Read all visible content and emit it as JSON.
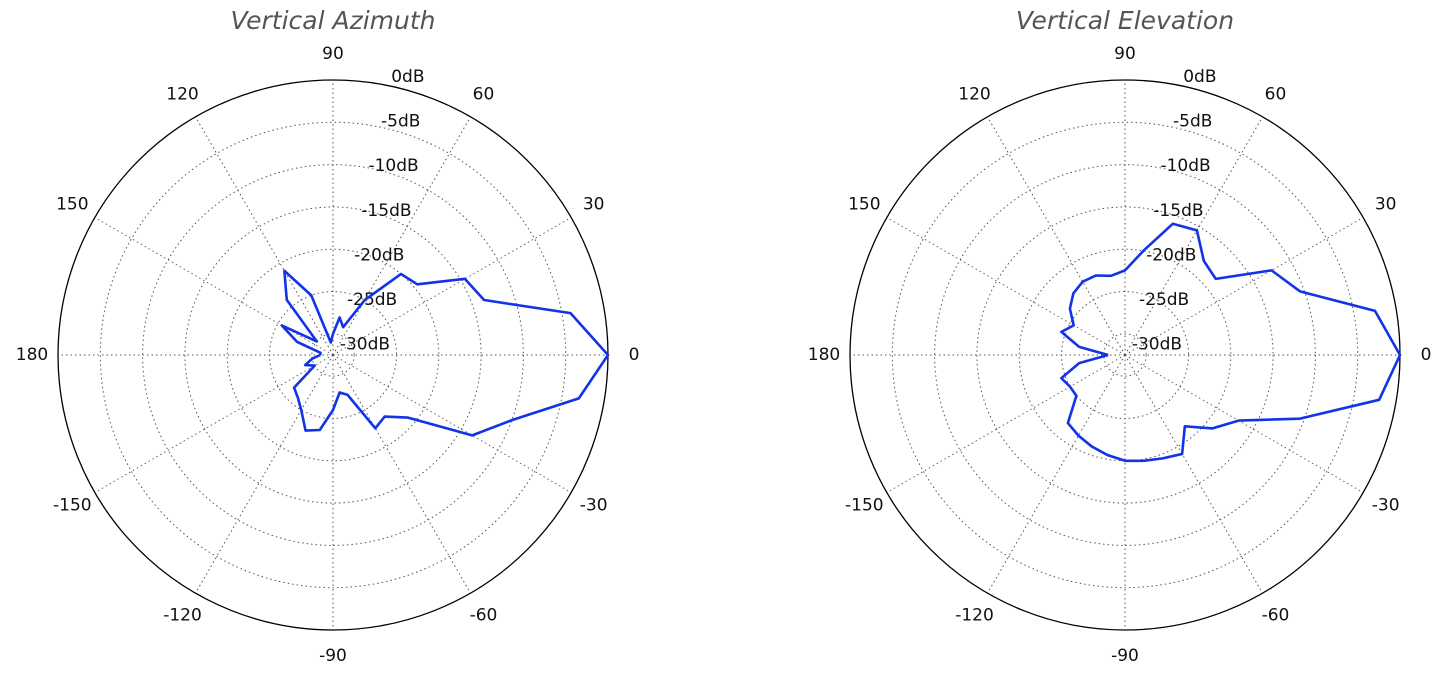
{
  "chart_data": [
    {
      "type": "polar",
      "title": "Vertical Azimuth",
      "color": "#1233e6",
      "grid": true,
      "x": [
        -180,
        -170,
        -160,
        -150,
        -140,
        -130,
        -120,
        -110,
        -100,
        -90,
        -80,
        -70,
        -60,
        -50,
        -40,
        -30,
        -20,
        -10,
        0,
        10,
        20,
        30,
        40,
        50,
        60,
        70,
        80,
        90,
        100,
        110,
        120,
        130,
        140,
        150,
        160,
        170,
        180
      ],
      "values": [
        -31,
        -30,
        -29,
        -30,
        -26.5,
        -26,
        -25,
        -23,
        -23.5,
        -26,
        -28,
        -27.5,
        -22.5,
        -23,
        -21,
        -13.5,
        -10,
        -3,
        0,
        -4,
        -13.5,
        -14.5,
        -19.5,
        -20,
        -25,
        -29,
        -28,
        -30,
        -31,
        -25,
        -21,
        -24,
        -30,
        -25.5,
        -28,
        -31,
        -31
      ],
      "xlim": [
        -180,
        180
      ],
      "xticks": [
        0,
        30,
        60,
        90,
        120,
        150,
        180,
        -150,
        -120,
        -90,
        -60,
        -30
      ],
      "ylim": [
        -32.5,
        0
      ],
      "yticks": [
        {
          "value": 0,
          "label": "0dB"
        },
        {
          "value": -5,
          "label": "-5dB"
        },
        {
          "value": -10,
          "label": "-10dB"
        },
        {
          "value": -15,
          "label": "-15dB"
        },
        {
          "value": -20,
          "label": "-20dB"
        },
        {
          "value": -25,
          "label": "-25dB"
        },
        {
          "value": -30,
          "label": "-30dB"
        }
      ]
    },
    {
      "type": "polar",
      "title": "Vertical Elevation",
      "color": "#1233e6",
      "grid": true,
      "x": [
        -180,
        -170,
        -160,
        -150,
        -140,
        -130,
        -120,
        -110,
        -100,
        -90,
        -80,
        -70,
        -60,
        -50,
        -40,
        -30,
        -20,
        -10,
        0,
        10,
        20,
        30,
        40,
        50,
        60,
        70,
        80,
        90,
        100,
        110,
        120,
        130,
        140,
        150,
        160,
        170,
        180
      ],
      "values": [
        -30.5,
        -27,
        -24.5,
        -25,
        -25,
        -22,
        -21.5,
        -21,
        -20.5,
        -20,
        -19.8,
        -19.5,
        -19,
        -21.5,
        -19,
        -17,
        -10.5,
        -2,
        0,
        -2.5,
        -10.5,
        -12.5,
        -18.5,
        -18,
        -15.5,
        -16,
        -20,
        -22.5,
        -23,
        -22.5,
        -22.5,
        -23,
        -24,
        -25.5,
        -24.5,
        -27,
        -30.5
      ],
      "xlim": [
        -180,
        180
      ],
      "xticks": [
        0,
        30,
        60,
        90,
        120,
        150,
        180,
        -150,
        -120,
        -90,
        -60,
        -30
      ],
      "ylim": [
        -32.5,
        0
      ],
      "yticks": [
        {
          "value": 0,
          "label": "0dB"
        },
        {
          "value": -5,
          "label": "-5dB"
        },
        {
          "value": -10,
          "label": "-10dB"
        },
        {
          "value": -15,
          "label": "-15dB"
        },
        {
          "value": -20,
          "label": "-20dB"
        },
        {
          "value": -25,
          "label": "-25dB"
        },
        {
          "value": -30,
          "label": "-30dB"
        }
      ]
    }
  ]
}
